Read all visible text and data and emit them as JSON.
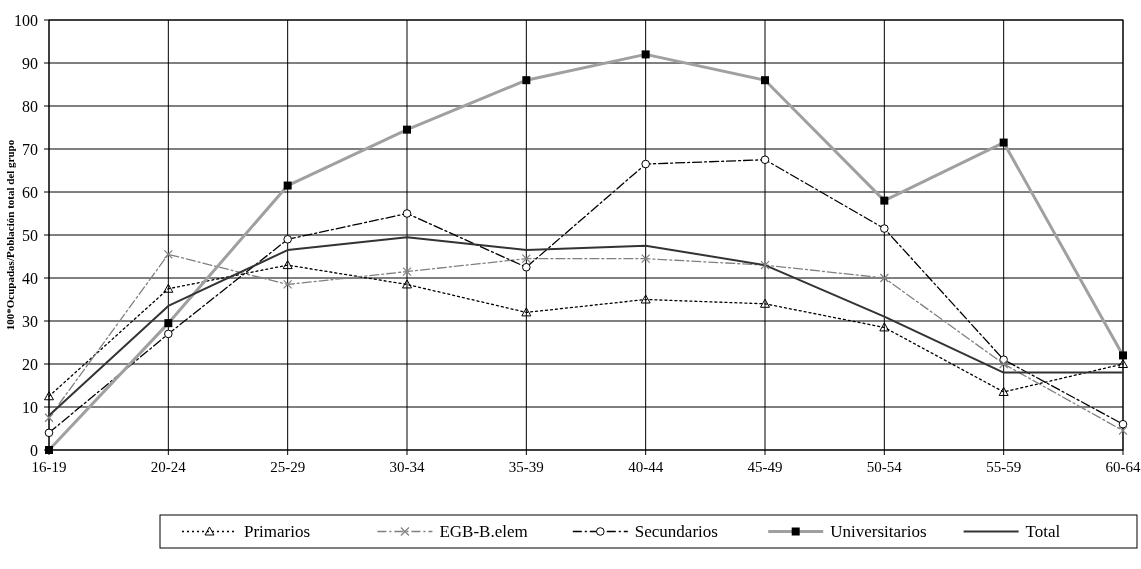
{
  "chart_data": {
    "type": "line",
    "ylabel": "100*Ocupadas/Población total del grupo",
    "categories": [
      "16-19",
      "20-24",
      "25-29",
      "30-34",
      "35-39",
      "40-44",
      "45-49",
      "50-54",
      "55-59",
      "60-64"
    ],
    "ylim": [
      0,
      100
    ],
    "yticks": [
      0,
      10,
      20,
      30,
      40,
      50,
      60,
      70,
      80,
      90,
      100
    ],
    "grid": true,
    "legend": "bottom",
    "series": [
      {
        "name": "Primarios",
        "color": "#000000",
        "marker": "triangle",
        "line_style": "dotted",
        "values": [
          12.5,
          37.5,
          43,
          38.5,
          32,
          35,
          34,
          28.5,
          13.5,
          20
        ]
      },
      {
        "name": "EGB-B.elem",
        "color": "#808080",
        "marker": "cross",
        "line_style": "dashed",
        "values": [
          7.5,
          45.5,
          38.5,
          41.5,
          44.5,
          44.5,
          43,
          40,
          20,
          4.5
        ]
      },
      {
        "name": "Secundarios",
        "color": "#000000",
        "marker": "circle",
        "line_style": "dashed",
        "values": [
          4,
          27,
          49,
          55,
          42.5,
          66.5,
          67.5,
          51.5,
          21,
          6
        ]
      },
      {
        "name": "Universitarios",
        "color": "#a0a0a0",
        "marker": "square",
        "line_style": "solid",
        "values": [
          0,
          29.5,
          61.5,
          74.5,
          86,
          92,
          86,
          58,
          71.5,
          22
        ]
      },
      {
        "name": "Total",
        "color": "#333333",
        "marker": "none",
        "line_style": "solid",
        "values": [
          8,
          33.5,
          46.5,
          49.5,
          46.5,
          47.5,
          43,
          31,
          18,
          18
        ]
      }
    ]
  }
}
